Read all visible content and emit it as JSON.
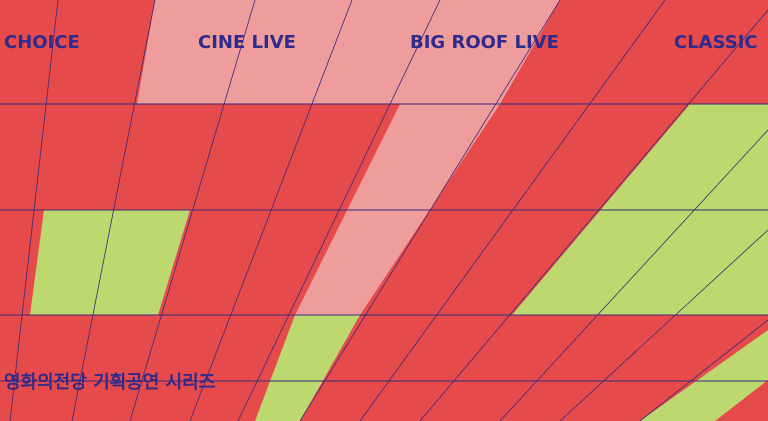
{
  "banner": {
    "categories": [
      "CHOICE",
      "CINE LIVE",
      "BIG ROOF LIVE",
      "CLASSIC"
    ],
    "subtitle": "영화의전당 기획공연 시리즈"
  },
  "colors": {
    "base": "#e64a4a",
    "pink": "#ee9c9c",
    "green": "#bcd86f",
    "line": "#3b2a7a",
    "text": "#2f2a8c"
  }
}
